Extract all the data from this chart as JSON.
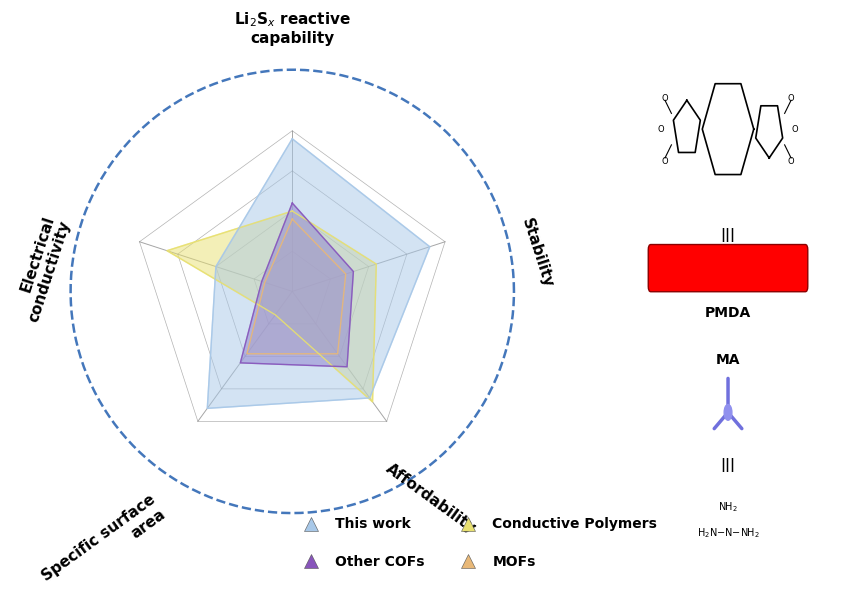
{
  "categories": [
    "Li₂Sₓ reactive\ncapability",
    "Stability",
    "Affordability",
    "Specific surface\narea",
    "Electrical\nconductivity"
  ],
  "num_vars": 5,
  "series": {
    "This work": [
      0.95,
      0.9,
      0.82,
      0.9,
      0.5
    ],
    "Conductive Polymers": [
      0.5,
      0.55,
      0.85,
      0.18,
      0.82
    ],
    "Other COFs": [
      0.55,
      0.4,
      0.58,
      0.55,
      0.2
    ],
    "MOFs": [
      0.45,
      0.35,
      0.48,
      0.48,
      0.18
    ]
  },
  "colors": {
    "This work": "#A8C8E8",
    "Conductive Polymers": "#E8E070",
    "Other COFs": "#8855BB",
    "MOFs": "#E8B878"
  },
  "alphas": {
    "This work": 0.5,
    "Conductive Polymers": 0.5,
    "Other COFs": 0.6,
    "MOFs": 0.45
  },
  "grid_levels": [
    0.25,
    0.5,
    0.75,
    1.0
  ],
  "circle_color": "#4477BB",
  "background_color": "#FFFFFF",
  "label_fontsize": 11,
  "legend_fontsize": 10,
  "right_panel_color": "#DDDDDD"
}
